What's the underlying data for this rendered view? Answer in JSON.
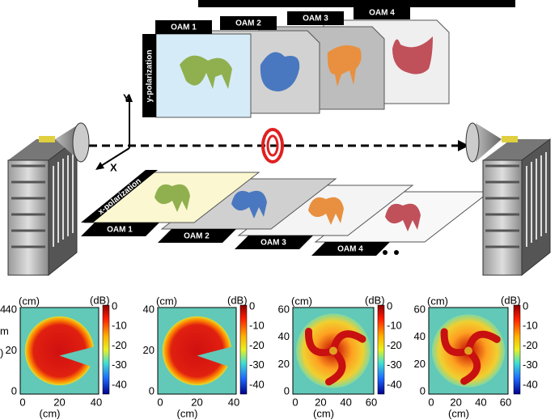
{
  "top_diagram": {
    "y_polarization": {
      "label": "y-polarization",
      "modes": [
        "OAM 1",
        "OAM 2",
        "OAM 3",
        "OAM 4"
      ]
    },
    "x_polarization": {
      "label": "x-polarization",
      "modes": [
        "OAM 1",
        "OAM 2",
        "OAM 3",
        "OAM 4"
      ]
    },
    "axes": {
      "y": "Y",
      "x": "X"
    }
  },
  "left_edge_fragments": [
    "4",
    "m",
    ")"
  ],
  "heatmaps": [
    {
      "y_unit": "(cm)",
      "x_unit": "(cm)",
      "colorbar_unit": "(dB)",
      "xticks": [
        0,
        20,
        40
      ],
      "yticks": [
        0,
        20,
        40
      ],
      "colorbar_ticks": [
        0,
        -10,
        -20,
        -30,
        -40
      ]
    },
    {
      "y_unit": "(cm)",
      "x_unit": "(cm)",
      "colorbar_unit": "(dB)",
      "xticks": [
        0,
        20,
        40
      ],
      "yticks": [
        0,
        20,
        40
      ],
      "colorbar_ticks": [
        0,
        -10,
        -20,
        -30,
        -40
      ]
    },
    {
      "y_unit": "(cm)",
      "x_unit": "(cm)",
      "colorbar_unit": "(dB)",
      "xticks": [
        0,
        20,
        40,
        60
      ],
      "yticks": [
        0,
        20,
        40,
        60
      ],
      "colorbar_ticks": [
        0,
        -10,
        -20,
        -30,
        -40
      ]
    },
    {
      "y_unit": "(cm)",
      "x_unit": "(cm)",
      "colorbar_unit": "(dB)",
      "xticks": [
        0,
        20,
        40,
        60
      ],
      "yticks": [
        0,
        20,
        40,
        60
      ],
      "colorbar_ticks": [
        0,
        -10,
        -20,
        -30,
        -40
      ]
    }
  ]
}
